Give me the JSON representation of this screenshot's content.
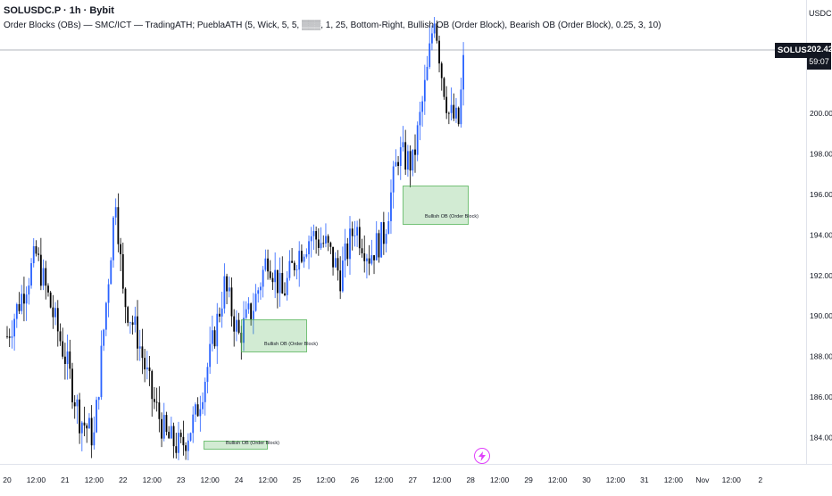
{
  "header": {
    "symbol_line": "SOLUSDC.P · 1h · Bybit",
    "indicator_line": "Order Blocks (OBs) — SMC/ICT — TradingATH; PueblaATH (5, Wick, 5, 5, ▒▒▒, 1, 25, Bottom-Right, Bullish OB (Order Block), Bearish OB (Order Block), 0.25, 3, 10)"
  },
  "price_axis": {
    "currency": "USDC",
    "current_price": "202.42",
    "countdown": "59:07",
    "symbol_tag": "SOLUSDC.P"
  },
  "order_blocks": [
    {
      "label": "Bullish OB (Order Block)"
    },
    {
      "label": "Bullish OB (Order Block)"
    },
    {
      "label": "Bullish OB (Order Block)"
    }
  ],
  "colors": {
    "up_candle": "#2962ff",
    "down_candle": "#000000",
    "ob_fill": "#c8e6c9",
    "ob_border": "#4caf50",
    "price_line": "#b2b5be",
    "alert_icon": "#e040fb"
  },
  "icons": [
    "lightning-alert-icon"
  ],
  "chart_data": {
    "type": "candlestick",
    "title": "SOLUSDC.P · 1h · Bybit",
    "ylabel": "USDC",
    "ylim": [
      182.7,
      205.6
    ],
    "y_ticks": [
      184.0,
      186.0,
      188.0,
      190.0,
      192.0,
      194.0,
      196.0,
      198.0,
      200.0
    ],
    "x_ticks": [
      "20",
      "12:00",
      "21",
      "12:00",
      "22",
      "12:00",
      "23",
      "12:00",
      "24",
      "12:00",
      "25",
      "12:00",
      "26",
      "12:00",
      "27",
      "12:00",
      "28",
      "12:00",
      "29",
      "12:00",
      "30",
      "12:00",
      "31",
      "12:00",
      "Nov",
      "12:00",
      "2"
    ],
    "last_price": 202.42,
    "series": [
      {
        "name": "SOLUSDC.P",
        "close_path": [
          {
            "x": "Oct 20 00:00",
            "y": 189.0
          },
          {
            "x": "Oct 20 12:00",
            "y": 193.0
          },
          {
            "x": "Oct 21 00:00",
            "y": 188.0
          },
          {
            "x": "Oct 21 06:00",
            "y": 185.0
          },
          {
            "x": "Oct 21 12:00",
            "y": 184.0
          },
          {
            "x": "Oct 21 21:00",
            "y": 196.0
          },
          {
            "x": "Oct 22 00:00",
            "y": 191.0
          },
          {
            "x": "Oct 22 06:00",
            "y": 189.0
          },
          {
            "x": "Oct 22 12:00",
            "y": 186.0
          },
          {
            "x": "Oct 22 18:00",
            "y": 184.0
          },
          {
            "x": "Oct 23 00:00",
            "y": 183.5
          },
          {
            "x": "Oct 23 06:00",
            "y": 185.0
          },
          {
            "x": "Oct 23 12:00",
            "y": 188.0
          },
          {
            "x": "Oct 23 18:00",
            "y": 191.5
          },
          {
            "x": "Oct 24 00:00",
            "y": 189.0
          },
          {
            "x": "Oct 24 06:00",
            "y": 190.5
          },
          {
            "x": "Oct 24 12:00",
            "y": 193.0
          },
          {
            "x": "Oct 24 18:00",
            "y": 191.0
          },
          {
            "x": "Oct 25 00:00",
            "y": 193.0
          },
          {
            "x": "Oct 25 06:00",
            "y": 194.0
          },
          {
            "x": "Oct 25 12:00",
            "y": 193.5
          },
          {
            "x": "Oct 25 18:00",
            "y": 192.0
          },
          {
            "x": "Oct 26 00:00",
            "y": 194.5
          },
          {
            "x": "Oct 26 06:00",
            "y": 193.0
          },
          {
            "x": "Oct 26 12:00",
            "y": 194.0
          },
          {
            "x": "Oct 26 18:00",
            "y": 198.0
          },
          {
            "x": "Oct 27 00:00",
            "y": 197.5
          },
          {
            "x": "Oct 27 06:00",
            "y": 202.0
          },
          {
            "x": "Oct 27 09:00",
            "y": 205.0
          },
          {
            "x": "Oct 27 12:00",
            "y": 202.0
          },
          {
            "x": "Oct 27 15:00",
            "y": 200.0
          },
          {
            "x": "Oct 27 19:00",
            "y": 199.5
          },
          {
            "x": "Oct 27 21:00",
            "y": 202.42
          }
        ]
      }
    ],
    "order_blocks": [
      {
        "label": "Bullish OB (Order Block)",
        "x_start": "Oct 23 18:00",
        "x_end": "Oct 24 12:00",
        "y_top": 184.5,
        "y_bottom": 184.1
      },
      {
        "label": "Bullish OB (Order Block)",
        "x_start": "Oct 24 12:00",
        "x_end": "Oct 25 00:00",
        "y_top": 189.9,
        "y_bottom": 188.5
      },
      {
        "label": "Bullish OB (Order Block)",
        "x_start": "Oct 26 18:00",
        "x_end": "Oct 27 12:00",
        "y_top": 196.1,
        "y_bottom": 194.4
      }
    ],
    "grid": false,
    "legend": "top-left"
  }
}
